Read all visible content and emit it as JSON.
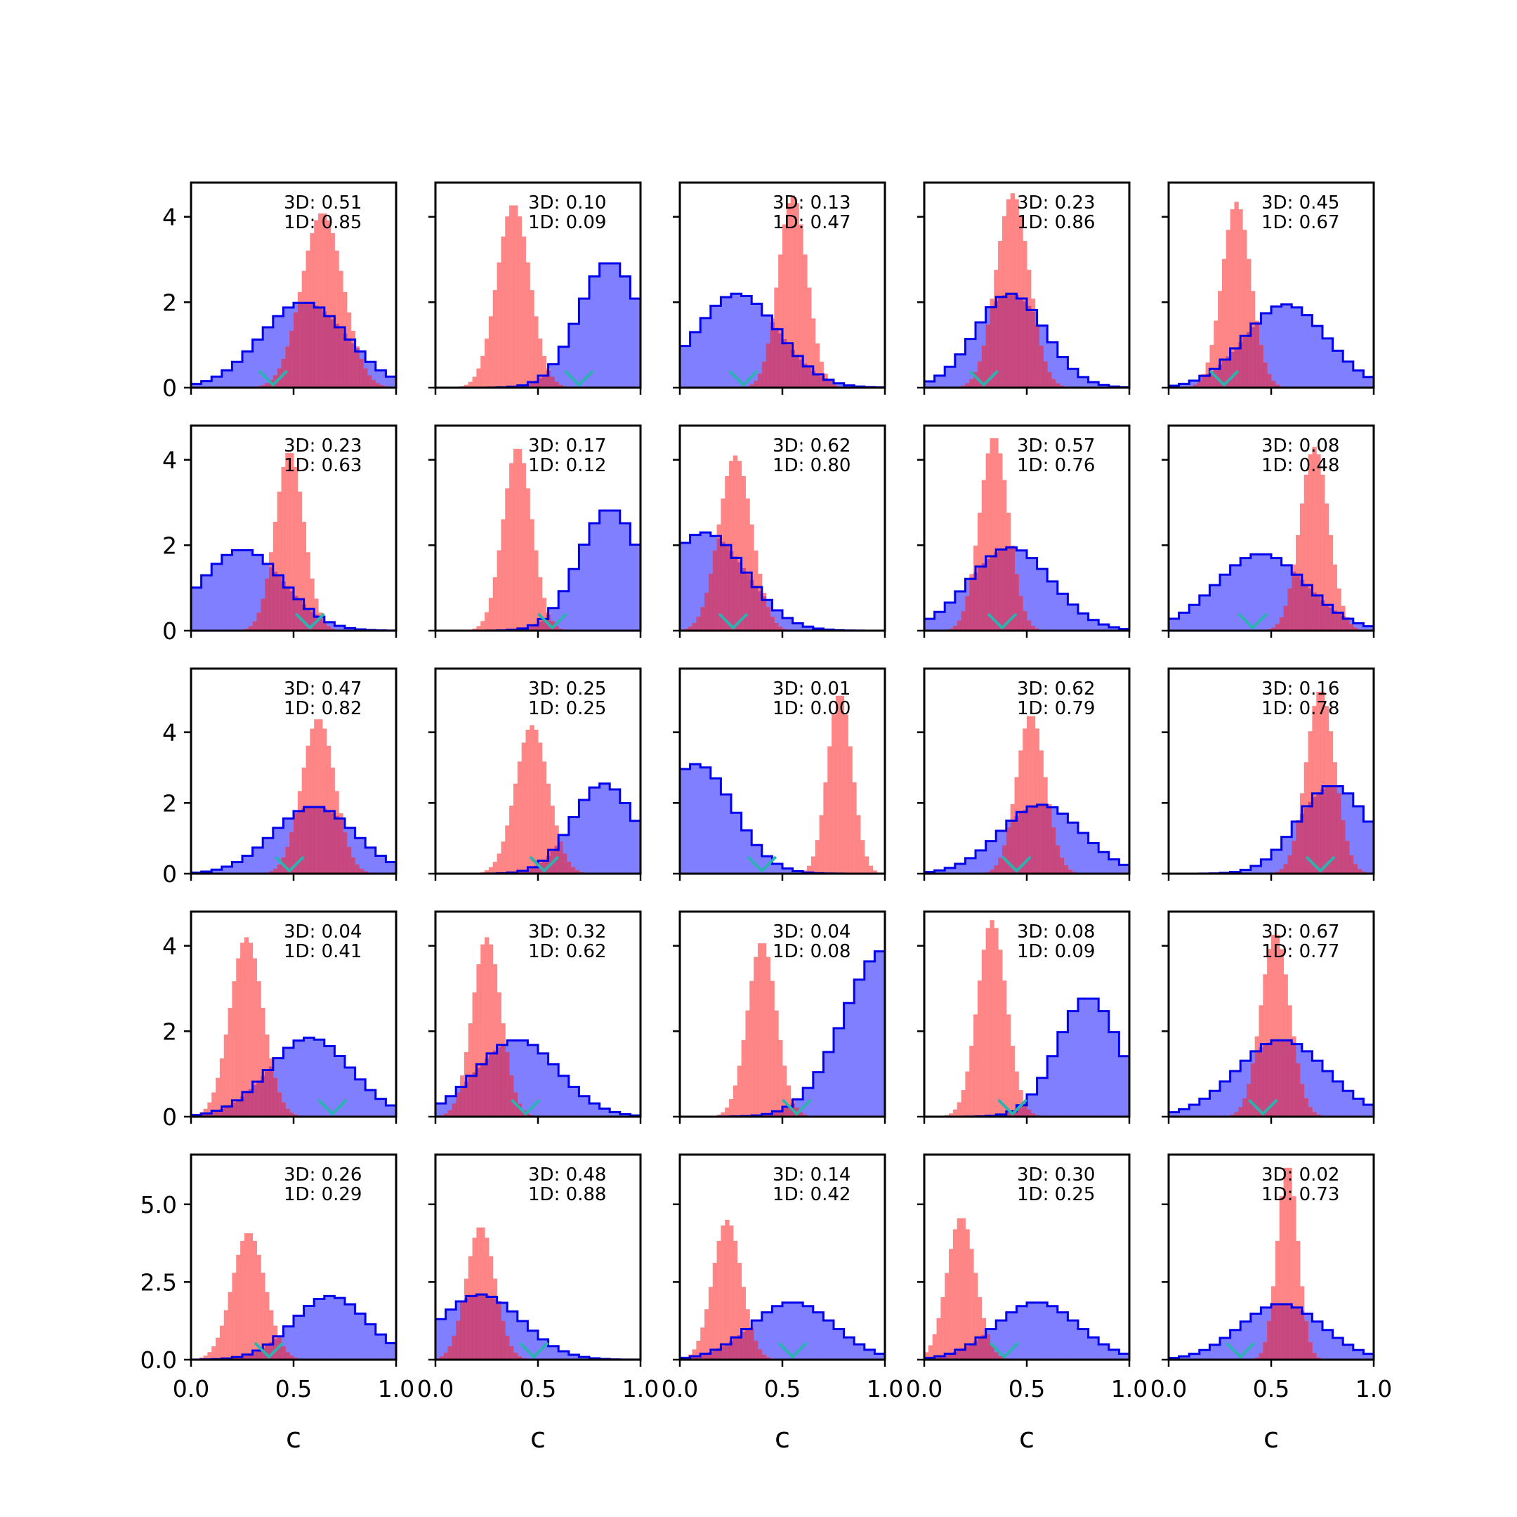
{
  "colors": {
    "blue_fill": "#7f7fff",
    "blue_edge": "#0000ee",
    "red_fill": "#ff7f7f",
    "overlap": "#bf3f7f",
    "marker": "#2bb3b0"
  },
  "legend": null,
  "chart_data": {
    "type": "histogram-grid",
    "grid": {
      "rows": 5,
      "cols": 5
    },
    "x_ticks": [
      "0.0",
      "0.5",
      "1.0"
    ],
    "xlim": [
      0,
      1
    ],
    "xlabel": "c",
    "row_yticks": [
      {
        "ylim": [
          0,
          4.8
        ],
        "ticks": [
          "0",
          "2",
          "4"
        ],
        "values": [
          0,
          2,
          4
        ]
      },
      {
        "ylim": [
          0,
          4.8
        ],
        "ticks": [
          "0",
          "2",
          "4"
        ],
        "values": [
          0,
          2,
          4
        ]
      },
      {
        "ylim": [
          0,
          5.8
        ],
        "ticks": [
          "0",
          "2",
          "4"
        ],
        "values": [
          0,
          2,
          4
        ]
      },
      {
        "ylim": [
          0,
          4.8
        ],
        "ticks": [
          "0",
          "2",
          "4"
        ],
        "values": [
          0,
          2,
          4
        ]
      },
      {
        "ylim": [
          0,
          6.6
        ],
        "ticks": [
          "0.0",
          "2.5",
          "5.0"
        ],
        "values": [
          0,
          2.5,
          5
        ]
      }
    ],
    "series_legend": [
      "1D",
      "3D"
    ],
    "panels": [
      {
        "a3d": "3D: 0.51",
        "a1d": "1D: 0.85",
        "blue": {
          "mu": 0.55,
          "sd": 0.21,
          "peak": 2.0
        },
        "red": {
          "mu": 0.64,
          "sd": 0.1,
          "peak": 4.1
        },
        "marker": 0.4
      },
      {
        "a3d": "3D: 0.10",
        "a1d": "1D: 0.09",
        "blue": {
          "mu": 0.85,
          "sd": 0.15,
          "peak": 2.95
        },
        "red": {
          "mu": 0.38,
          "sd": 0.08,
          "peak": 4.3
        },
        "marker": 0.7
      },
      {
        "a3d": "3D: 0.13",
        "a1d": "1D: 0.47",
        "blue": {
          "mu": 0.28,
          "sd": 0.2,
          "peak": 2.2
        },
        "red": {
          "mu": 0.55,
          "sd": 0.07,
          "peak": 4.5
        },
        "marker": 0.31
      },
      {
        "a3d": "3D: 0.23",
        "a1d": "1D: 0.86",
        "blue": {
          "mu": 0.42,
          "sd": 0.17,
          "peak": 2.2
        },
        "red": {
          "mu": 0.43,
          "sd": 0.08,
          "peak": 4.55
        },
        "marker": 0.29
      },
      {
        "a3d": "3D: 0.45",
        "a1d": "1D: 0.67",
        "blue": {
          "mu": 0.57,
          "sd": 0.2,
          "peak": 1.95
        },
        "red": {
          "mu": 0.33,
          "sd": 0.07,
          "peak": 4.35
        },
        "marker": 0.27
      },
      {
        "a3d": "3D: 0.23",
        "a1d": "1D: 0.63",
        "blue": {
          "mu": 0.25,
          "sd": 0.2,
          "peak": 1.9
        },
        "red": {
          "mu": 0.48,
          "sd": 0.07,
          "peak": 4.2
        },
        "marker": 0.58
      },
      {
        "a3d": "3D: 0.17",
        "a1d": "1D: 0.12",
        "blue": {
          "mu": 0.85,
          "sd": 0.15,
          "peak": 2.85
        },
        "red": {
          "mu": 0.4,
          "sd": 0.07,
          "peak": 4.3
        },
        "marker": 0.57
      },
      {
        "a3d": "3D: 0.62",
        "a1d": "1D: 0.80",
        "blue": {
          "mu": 0.12,
          "sd": 0.2,
          "peak": 2.3
        },
        "red": {
          "mu": 0.27,
          "sd": 0.08,
          "peak": 4.1
        },
        "marker": 0.26
      },
      {
        "a3d": "3D: 0.57",
        "a1d": "1D: 0.76",
        "blue": {
          "mu": 0.42,
          "sd": 0.2,
          "peak": 1.95
        },
        "red": {
          "mu": 0.34,
          "sd": 0.07,
          "peak": 4.55
        },
        "marker": 0.38
      },
      {
        "a3d": "3D: 0.08",
        "a1d": "1D: 0.48",
        "blue": {
          "mu": 0.45,
          "sd": 0.22,
          "peak": 1.8
        },
        "red": {
          "mu": 0.71,
          "sd": 0.07,
          "peak": 4.3
        },
        "marker": 0.41
      },
      {
        "a3d": "3D: 0.47",
        "a1d": "1D: 0.82",
        "blue": {
          "mu": 0.6,
          "sd": 0.2,
          "peak": 1.9
        },
        "red": {
          "mu": 0.62,
          "sd": 0.08,
          "peak": 4.4
        },
        "marker": 0.48
      },
      {
        "a3d": "3D: 0.25",
        "a1d": "1D: 0.25",
        "blue": {
          "mu": 0.82,
          "sd": 0.15,
          "peak": 2.55
        },
        "red": {
          "mu": 0.47,
          "sd": 0.08,
          "peak": 4.2
        },
        "marker": 0.53
      },
      {
        "a3d": "3D: 0.01",
        "a1d": "1D: 0.00",
        "blue": {
          "mu": 0.08,
          "sd": 0.18,
          "peak": 3.1
        },
        "red": {
          "mu": 0.78,
          "sd": 0.06,
          "peak": 5.1
        },
        "marker": 0.4
      },
      {
        "a3d": "3D: 0.62",
        "a1d": "1D: 0.79",
        "blue": {
          "mu": 0.57,
          "sd": 0.2,
          "peak": 1.95
        },
        "red": {
          "mu": 0.52,
          "sd": 0.07,
          "peak": 4.5
        },
        "marker": 0.45
      },
      {
        "a3d": "3D: 0.16",
        "a1d": "1D: 0.78",
        "blue": {
          "mu": 0.8,
          "sd": 0.17,
          "peak": 2.5
        },
        "red": {
          "mu": 0.74,
          "sd": 0.07,
          "peak": 5.2
        },
        "marker": 0.74
      },
      {
        "a3d": "3D: 0.04",
        "a1d": "1D: 0.41",
        "blue": {
          "mu": 0.58,
          "sd": 0.2,
          "peak": 1.85
        },
        "red": {
          "mu": 0.27,
          "sd": 0.08,
          "peak": 4.2
        },
        "marker": 0.69
      },
      {
        "a3d": "3D: 0.32",
        "a1d": "1D: 0.62",
        "blue": {
          "mu": 0.4,
          "sd": 0.2,
          "peak": 1.8
        },
        "red": {
          "mu": 0.25,
          "sd": 0.07,
          "peak": 4.2
        },
        "marker": 0.44
      },
      {
        "a3d": "3D: 0.04",
        "a1d": "1D: 0.08",
        "blue": {
          "mu": 1.0,
          "sd": 0.2,
          "peak": 3.9
        },
        "red": {
          "mu": 0.4,
          "sd": 0.07,
          "peak": 4.1
        },
        "marker": 0.57
      },
      {
        "a3d": "3D: 0.08",
        "a1d": "1D: 0.09",
        "blue": {
          "mu": 0.8,
          "sd": 0.15,
          "peak": 2.8
        },
        "red": {
          "mu": 0.33,
          "sd": 0.07,
          "peak": 4.6
        },
        "marker": 0.43
      },
      {
        "a3d": "3D: 0.67",
        "a1d": "1D: 0.77",
        "blue": {
          "mu": 0.55,
          "sd": 0.22,
          "peak": 1.8
        },
        "red": {
          "mu": 0.52,
          "sd": 0.07,
          "peak": 4.3
        },
        "marker": 0.46
      },
      {
        "a3d": "3D: 0.26",
        "a1d": "1D: 0.29",
        "blue": {
          "mu": 0.68,
          "sd": 0.18,
          "peak": 2.05
        },
        "red": {
          "mu": 0.28,
          "sd": 0.08,
          "peak": 4.1
        },
        "marker": 0.38
      },
      {
        "a3d": "3D: 0.48",
        "a1d": "1D: 0.88",
        "blue": {
          "mu": 0.22,
          "sd": 0.2,
          "peak": 2.1
        },
        "red": {
          "mu": 0.22,
          "sd": 0.07,
          "peak": 4.3
        },
        "marker": 0.48
      },
      {
        "a3d": "3D: 0.14",
        "a1d": "1D: 0.42",
        "blue": {
          "mu": 0.55,
          "sd": 0.2,
          "peak": 1.85
        },
        "red": {
          "mu": 0.23,
          "sd": 0.07,
          "peak": 4.5
        },
        "marker": 0.55
      },
      {
        "a3d": "3D: 0.30",
        "a1d": "1D: 0.25",
        "blue": {
          "mu": 0.55,
          "sd": 0.2,
          "peak": 1.85
        },
        "red": {
          "mu": 0.18,
          "sd": 0.07,
          "peak": 4.6
        },
        "marker": 0.39
      },
      {
        "a3d": "3D: 0.02",
        "a1d": "1D: 0.73",
        "blue": {
          "mu": 0.55,
          "sd": 0.2,
          "peak": 1.8
        },
        "red": {
          "mu": 0.58,
          "sd": 0.05,
          "peak": 6.3
        },
        "marker": 0.35
      }
    ]
  }
}
